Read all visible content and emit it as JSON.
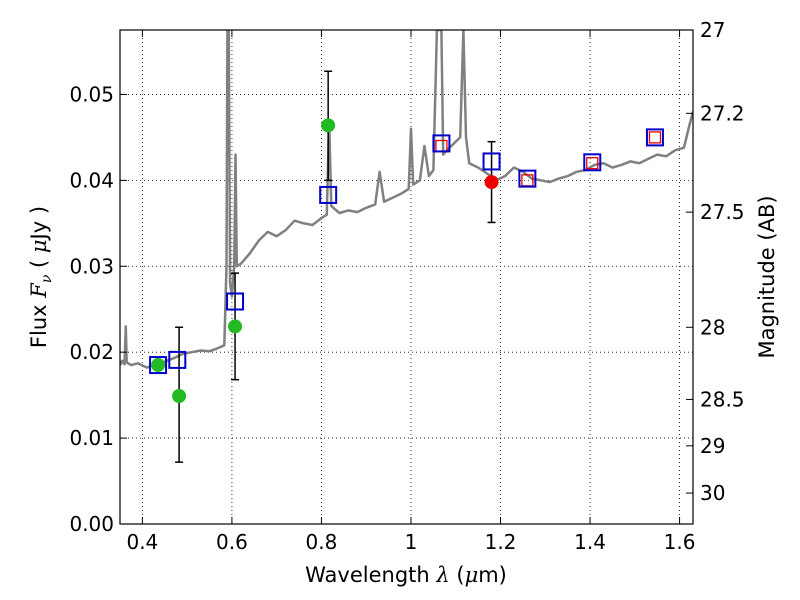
{
  "chart_data": {
    "type": "scatter",
    "xlabel": "Wavelength  λ (μm)",
    "ylabel": "Flux  F_ν  ( μJy )",
    "ylabel_right": "Magnitude (AB)",
    "xlim": [
      0.35,
      1.63
    ],
    "ylim": [
      0.0,
      0.0575
    ],
    "grid": true,
    "x_ticks": [
      0.4,
      0.6,
      0.8,
      1.0,
      1.2,
      1.4,
      1.6
    ],
    "x_tick_labels": [
      "0.4",
      "0.6",
      "0.8",
      "1",
      "1.2",
      "1.4",
      "1.6"
    ],
    "y_ticks": [
      0.0,
      0.01,
      0.02,
      0.03,
      0.04,
      0.05
    ],
    "y_tick_labels": [
      "0.00",
      "0.01",
      "0.02",
      "0.03",
      "0.04",
      "0.05"
    ],
    "right_ticks": [
      {
        "label": "27",
        "flux": 0.0575
      },
      {
        "label": "27.2",
        "flux": 0.0478
      },
      {
        "label": "27.5",
        "flux": 0.0363
      },
      {
        "label": "28",
        "flux": 0.0229
      },
      {
        "label": "28.5",
        "flux": 0.0145
      },
      {
        "label": "29",
        "flux": 0.0091
      },
      {
        "label": "30",
        "flux": 0.0036
      }
    ],
    "colors": {
      "model": "#808080",
      "model_boxes": "#0000cc",
      "observed_green": "#22bb22",
      "observed_red": "#ee0000",
      "red_boxes": "#ee0000"
    },
    "series": [
      {
        "name": "model_spectrum",
        "style": "line",
        "points": [
          [
            0.35,
            0.0185
          ],
          [
            0.355,
            0.019
          ],
          [
            0.36,
            0.0186
          ],
          [
            0.363,
            0.023
          ],
          [
            0.365,
            0.0188
          ],
          [
            0.375,
            0.0185
          ],
          [
            0.39,
            0.0187
          ],
          [
            0.41,
            0.0182
          ],
          [
            0.43,
            0.0186
          ],
          [
            0.45,
            0.0189
          ],
          [
            0.47,
            0.0193
          ],
          [
            0.49,
            0.0198
          ],
          [
            0.51,
            0.02
          ],
          [
            0.53,
            0.0202
          ],
          [
            0.55,
            0.0201
          ],
          [
            0.57,
            0.0205
          ],
          [
            0.583,
            0.0208
          ],
          [
            0.588,
            0.03
          ],
          [
            0.59,
            0.0575
          ],
          [
            0.593,
            0.0575
          ],
          [
            0.596,
            0.028
          ],
          [
            0.6,
            0.0265
          ],
          [
            0.605,
            0.03
          ],
          [
            0.608,
            0.043
          ],
          [
            0.611,
            0.03
          ],
          [
            0.62,
            0.0303
          ],
          [
            0.64,
            0.0315
          ],
          [
            0.66,
            0.033
          ],
          [
            0.68,
            0.034
          ],
          [
            0.7,
            0.0335
          ],
          [
            0.72,
            0.0342
          ],
          [
            0.74,
            0.0353
          ],
          [
            0.76,
            0.035
          ],
          [
            0.78,
            0.0348
          ],
          [
            0.8,
            0.0356
          ],
          [
            0.812,
            0.036
          ],
          [
            0.817,
            0.047
          ],
          [
            0.822,
            0.037
          ],
          [
            0.84,
            0.0362
          ],
          [
            0.86,
            0.0365
          ],
          [
            0.88,
            0.0363
          ],
          [
            0.9,
            0.0368
          ],
          [
            0.92,
            0.0372
          ],
          [
            0.93,
            0.041
          ],
          [
            0.94,
            0.0375
          ],
          [
            0.96,
            0.038
          ],
          [
            0.98,
            0.0385
          ],
          [
            0.995,
            0.039
          ],
          [
            1.0,
            0.046
          ],
          [
            1.005,
            0.0395
          ],
          [
            1.02,
            0.04
          ],
          [
            1.03,
            0.044
          ],
          [
            1.04,
            0.0405
          ],
          [
            1.05,
            0.0412
          ],
          [
            1.058,
            0.0575
          ],
          [
            1.068,
            0.0575
          ],
          [
            1.072,
            0.043
          ],
          [
            1.08,
            0.0435
          ],
          [
            1.09,
            0.044
          ],
          [
            1.1,
            0.0445
          ],
          [
            1.11,
            0.045
          ],
          [
            1.117,
            0.0575
          ],
          [
            1.123,
            0.045
          ],
          [
            1.13,
            0.042
          ],
          [
            1.15,
            0.0415
          ],
          [
            1.17,
            0.0408
          ],
          [
            1.19,
            0.04
          ],
          [
            1.21,
            0.0405
          ],
          [
            1.23,
            0.0415
          ],
          [
            1.25,
            0.041
          ],
          [
            1.27,
            0.0402
          ],
          [
            1.29,
            0.04
          ],
          [
            1.31,
            0.0398
          ],
          [
            1.33,
            0.0402
          ],
          [
            1.35,
            0.0405
          ],
          [
            1.37,
            0.041
          ],
          [
            1.39,
            0.0412
          ],
          [
            1.41,
            0.0418
          ],
          [
            1.43,
            0.042
          ],
          [
            1.45,
            0.0415
          ],
          [
            1.47,
            0.0418
          ],
          [
            1.49,
            0.0422
          ],
          [
            1.51,
            0.042
          ],
          [
            1.53,
            0.0425
          ],
          [
            1.55,
            0.043
          ],
          [
            1.57,
            0.0428
          ],
          [
            1.59,
            0.0435
          ],
          [
            1.61,
            0.0438
          ],
          [
            1.62,
            0.046
          ],
          [
            1.63,
            0.048
          ]
        ]
      },
      {
        "name": "model_photometry_blue",
        "style": "open_square",
        "points": [
          [
            0.435,
            0.0185
          ],
          [
            0.478,
            0.0191
          ],
          [
            0.607,
            0.0259
          ],
          [
            0.815,
            0.0383
          ],
          [
            1.068,
            0.0443
          ],
          [
            1.18,
            0.0422
          ],
          [
            1.26,
            0.0402
          ],
          [
            1.405,
            0.0421
          ],
          [
            1.545,
            0.045
          ]
        ]
      },
      {
        "name": "model_photometry_red",
        "style": "small_open_square",
        "points": [
          [
            1.068,
            0.044
          ],
          [
            1.26,
            0.04
          ],
          [
            1.405,
            0.042
          ],
          [
            1.545,
            0.045
          ]
        ]
      },
      {
        "name": "observed_green",
        "style": "filled_circle",
        "points": [
          {
            "x": 0.435,
            "y": 0.0185,
            "err": null
          },
          {
            "x": 0.482,
            "y": 0.0149,
            "err": [
              0.0072,
              0.0229
            ]
          },
          {
            "x": 0.607,
            "y": 0.023,
            "err": [
              0.0168,
              0.0292
            ]
          },
          {
            "x": 0.815,
            "y": 0.0464,
            "err": [
              0.04,
              0.0527
            ]
          }
        ]
      },
      {
        "name": "observed_red",
        "style": "filled_circle",
        "points": [
          {
            "x": 1.18,
            "y": 0.0398,
            "err": [
              0.0351,
              0.0445
            ]
          }
        ]
      }
    ]
  }
}
